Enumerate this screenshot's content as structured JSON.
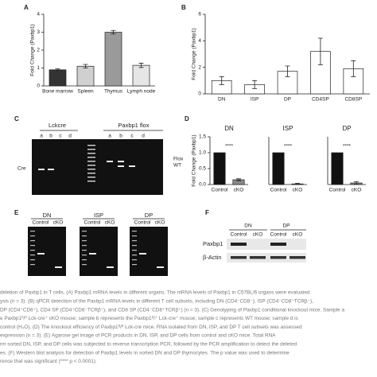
{
  "chart_data": [
    {
      "type": "bar",
      "ylabel": "Fold Change (Paxbp1)",
      "categories": [
        "Bone marrow",
        "Spleen",
        "Thymus",
        "Lymph node"
      ],
      "values": [
        0.9,
        1.1,
        3.0,
        1.15
      ],
      "errors": [
        0.05,
        0.1,
        0.1,
        0.12
      ],
      "colors": [
        "#333333",
        "#d0d0d0",
        "#9a9a9a",
        "#e6e6e6"
      ],
      "ylim": [
        0,
        4
      ],
      "yticks": [
        0,
        1,
        2,
        3,
        4
      ]
    },
    {
      "type": "bar",
      "ylabel": "Fold Change (Paxbp1)",
      "categories": [
        "DN",
        "ISP",
        "DP",
        "CD4SP",
        "CD8SP"
      ],
      "values": [
        1.0,
        0.7,
        1.7,
        3.2,
        1.9
      ],
      "errors": [
        0.3,
        0.3,
        0.4,
        1.0,
        0.6
      ],
      "colors": [
        "#ffffff",
        "#ffffff",
        "#ffffff",
        "#ffffff",
        "#ffffff"
      ],
      "ylim": [
        0,
        6
      ],
      "yticks": [
        0,
        2,
        4,
        6
      ]
    },
    {
      "type": "bar",
      "title": "DN",
      "ylabel": "Fold Change (Paxbp1)",
      "annotation": "****",
      "categories": [
        "Control",
        "cKO"
      ],
      "values": [
        1.0,
        0.15
      ],
      "errors": [
        0,
        0.03
      ],
      "colors": [
        "#111111",
        "#8a8a8a"
      ],
      "ylim": [
        0,
        1.5
      ],
      "yticks": [
        {
          "value": 0,
          "label": "0.0"
        },
        {
          "value": 0.5,
          "label": "0.5"
        },
        {
          "value": 1,
          "label": "1.0"
        },
        {
          "value": 1.5,
          "label": "1.5"
        }
      ]
    },
    {
      "type": "bar",
      "title": "ISP",
      "annotation": "****",
      "categories": [
        "Control",
        "cKO"
      ],
      "values": [
        1.0,
        0.02
      ],
      "errors": [
        0,
        0.02
      ],
      "colors": [
        "#111111",
        "#8a8a8a"
      ],
      "ylim": [
        0,
        1.5
      ]
    },
    {
      "type": "bar",
      "title": "DP",
      "annotation": "****",
      "categories": [
        "Control",
        "cKO"
      ],
      "values": [
        1.0,
        0.05
      ],
      "errors": [
        0,
        0.04
      ],
      "colors": [
        "#111111",
        "#8a8a8a"
      ],
      "ylim": [
        0,
        1.5
      ]
    }
  ],
  "panel_labels": [
    "A",
    "B",
    "C",
    "D",
    "E",
    "F"
  ],
  "gel_c": {
    "groups": [
      "Lckcre",
      "Paxbp1 flox"
    ],
    "lanes": [
      "a",
      "b",
      "c",
      "d"
    ],
    "bands": [
      "Cre",
      "Flox",
      "WT"
    ]
  },
  "gel_e": {
    "panels": [
      "DN",
      "ISP",
      "DP"
    ],
    "lanes": [
      "Control",
      "cKO"
    ]
  },
  "blot_f": {
    "groups": [
      "DN",
      "DP"
    ],
    "lanes": [
      "Control",
      "cKO"
    ],
    "rows": [
      "Paxbp1",
      "β-Actin"
    ]
  },
  "caption": [
    "deletion of Paxbp1 in T cells. (A) Paxbp1 mRNA levels in different organs. The mRNA levels of Paxbp1 in C57BL/6 organs were evaluated",
    "ysis (n = 3). (B) qPCR detection of the Paxbp1 mRNA levels in different T cell subsets, including DN (CD4⁻CD8⁻), ISP (CD4⁻CD8⁺TCRβ⁻),",
    "DP (CD4⁺CD8⁺), CD4 SP (CD4⁺CD8⁻TCRβ⁺), and CD8 SP (CD4⁻CD8⁺TCRβ⁺) (n = 3). (C) Genotyping of Paxbp1 conditional knockout mice. Sample a",
    "e Paxbp1ᶠˡ/ᶠˡ Lck-cre⁺ cKO mouse; sample b represents the Paxbp1ᶠˡ/⁺ Lck-cre⁺ mouse; sample c represents WT mouse; sample d is",
    "control (H₂O). (D) The knockout efficiency of Paxbp1ᶠˡ/ᶠˡ Lck-cre mice. RNA isolated from DN, ISP, and DP T cell subsets was assessed",
    "expression (n = 3). (E) Agarose gel image of PCR products in DN, ISP, and DP cells from control and cKO mice. Total RNA",
    "rm sorted DN, ISP, and DP cells was subjected to reverse transcription PCR, followed by the PCR amplification to detect the deleted",
    "es. (F) Western blot analysis for detection of Paxbp1 levels in sorted DN and DP thymocytes. The p value was used to determine",
    "rence that was significant (**** p < 0.0001)."
  ]
}
